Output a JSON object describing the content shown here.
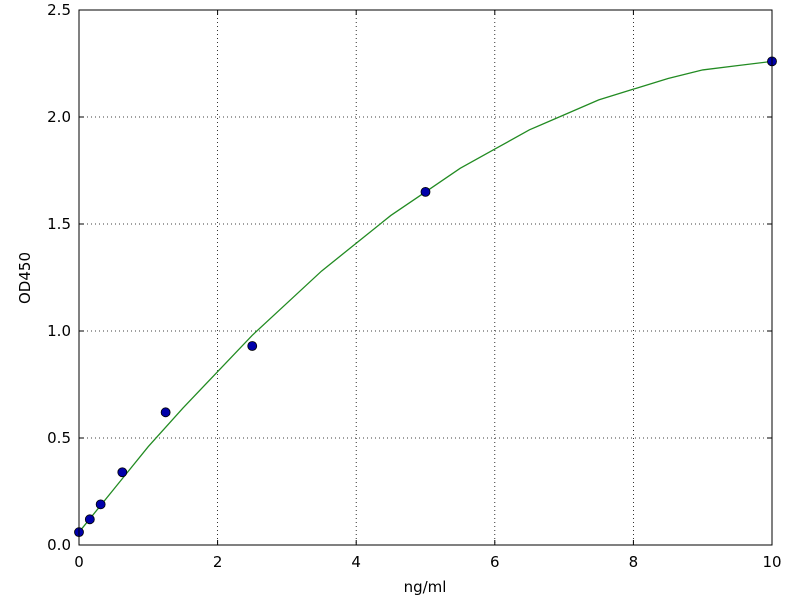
{
  "chart_data": {
    "type": "scatter",
    "xlabel": "ng/ml",
    "ylabel": "OD450",
    "xlim": [
      0,
      10
    ],
    "ylim": [
      0,
      2.5
    ],
    "xticks": [
      0,
      2,
      4,
      6,
      8,
      10
    ],
    "yticks": [
      {
        "value": 0,
        "label": "0.0"
      },
      0.5,
      {
        "value": 1,
        "label": "1.0"
      },
      1.5,
      {
        "value": 2,
        "label": "2.0"
      },
      2.5
    ],
    "grid": true,
    "series": [
      {
        "kind": "points",
        "color": "#0000aa",
        "x": [
          0,
          0.156,
          0.3125,
          0.625,
          1.25,
          2.5,
          5,
          10
        ],
        "values": [
          0.06,
          0.12,
          0.19,
          0.34,
          0.62,
          0.93,
          1.65,
          2.26
        ]
      },
      {
        "kind": "line",
        "color": "#228b22",
        "x": [
          0,
          0.5,
          1,
          1.5,
          2,
          2.5,
          3,
          3.5,
          4,
          4.5,
          5,
          5.5,
          6,
          6.5,
          7,
          7.5,
          8,
          8.5,
          9,
          9.5,
          10
        ],
        "values": [
          0.06,
          0.26,
          0.46,
          0.64,
          0.81,
          0.98,
          1.13,
          1.28,
          1.41,
          1.54,
          1.65,
          1.76,
          1.85,
          1.94,
          2.01,
          2.08,
          2.13,
          2.18,
          2.22,
          2.24,
          2.26
        ]
      }
    ]
  }
}
